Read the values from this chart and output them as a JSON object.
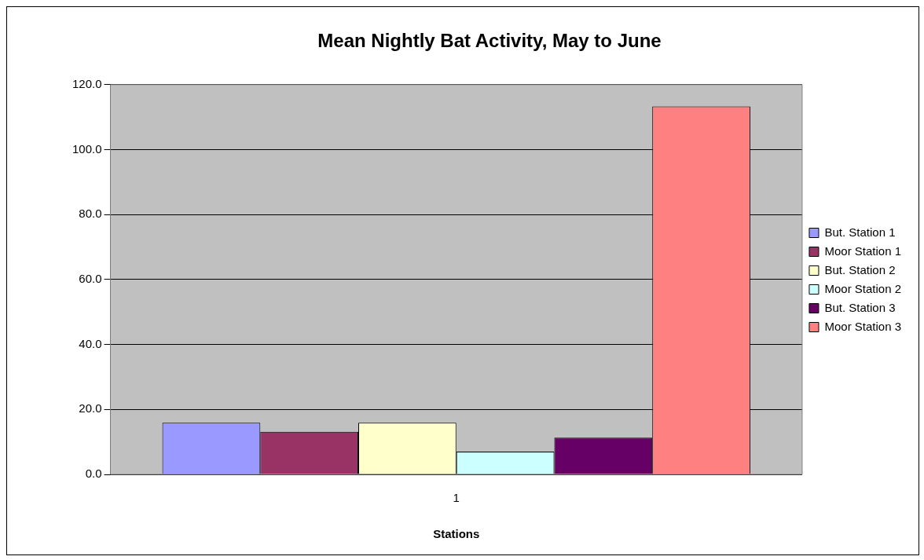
{
  "chart_data": {
    "type": "bar",
    "title": "Mean Nightly Bat Activity, May to June",
    "xlabel": "Stations",
    "categories": [
      "1"
    ],
    "series": [
      {
        "name": "But. Station 1",
        "color": "#9999ff",
        "values": [
          15.9
        ]
      },
      {
        "name": "Moor Station 1",
        "color": "#993366",
        "values": [
          13.1
        ]
      },
      {
        "name": "But. Station 2",
        "color": "#ffffcc",
        "values": [
          15.9
        ]
      },
      {
        "name": "Moor Station 2",
        "color": "#ccffff",
        "values": [
          7.0
        ]
      },
      {
        "name": "But. Station 3",
        "color": "#660066",
        "values": [
          11.3
        ]
      },
      {
        "name": "Moor Station 3",
        "color": "#ff8080",
        "values": [
          113.3
        ]
      }
    ],
    "ylim": [
      0,
      120
    ],
    "yticks": [
      {
        "value": 0,
        "label": "0.0"
      },
      {
        "value": 20,
        "label": "20.0"
      },
      {
        "value": 40,
        "label": "40.0"
      },
      {
        "value": 60,
        "label": "60.0"
      },
      {
        "value": 80,
        "label": "80.0"
      },
      {
        "value": 100,
        "label": "100.0"
      },
      {
        "value": 120,
        "label": "120.0"
      }
    ],
    "grid": "y",
    "legend": "right"
  }
}
